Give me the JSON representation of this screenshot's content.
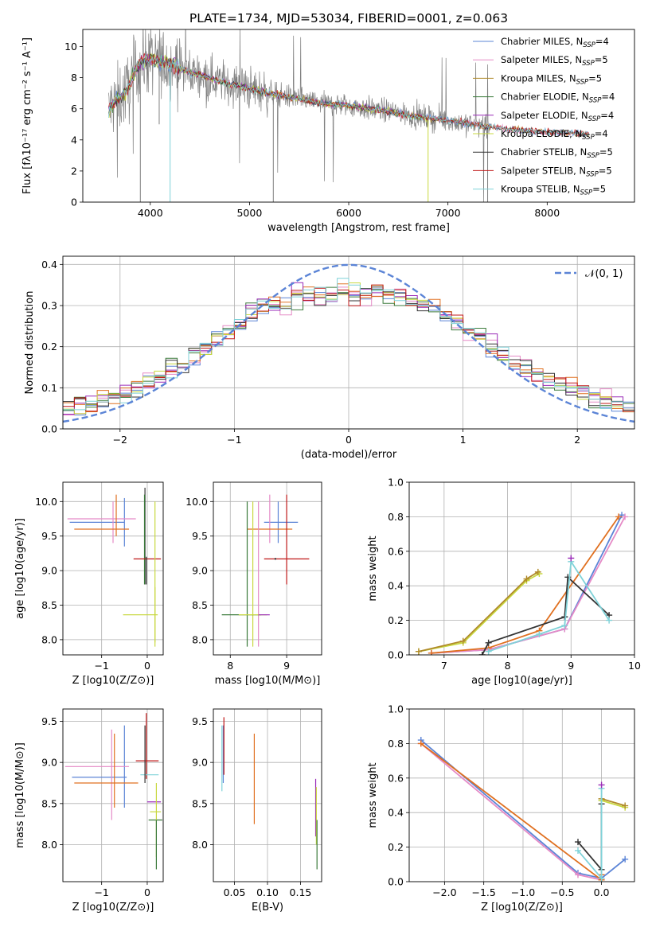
{
  "figure_title": "PLATE=1734, MJD=53034, FIBERID=0001, z=0.063",
  "colors": {
    "Chabrier MILES": "#5b84d6",
    "Salpeter MILES": "#e58ac6",
    "Kroupa MILES": "#b08a2a",
    "Chabrier ELODIE": "#3a7a3a",
    "Salpeter ELODIE": "#9a2ab8",
    "Kroupa ELODIE": "#c8d840",
    "Chabrier STELIB": "#333333",
    "Salpeter STELIB": "#c01818",
    "Kroupa STELIB": "#7fd2d8",
    "orange": "#e07020",
    "data_gray": "#7f7f7f",
    "gaussian": "#5b84d6",
    "grid": "#b0b0b0"
  },
  "chart_data": [
    {
      "id": "spectrum",
      "type": "line",
      "title": "PLATE=1734, MJD=53034, FIBERID=0001, z=0.063",
      "xlabel": "wavelength [Angstrom, rest frame]",
      "ylabel": "Flux [fλ10⁻¹⁷ erg cm⁻² s⁻¹ A⁻¹]",
      "xlim": [
        3320,
        8880
      ],
      "ylim": [
        0,
        11.1
      ],
      "xticks": [
        4000,
        5000,
        6000,
        7000,
        8000
      ],
      "yticks": [
        0,
        2,
        4,
        6,
        8,
        10
      ],
      "grid": false,
      "legend_position": "right",
      "legend": [
        {
          "name": "Chabrier MILES, N_SSP=4",
          "label_main": "Chabrier MILES, N",
          "label_sub": "SSP",
          "label_end": "=4",
          "color_key": "Chabrier MILES"
        },
        {
          "name": "Salpeter MILES, N_SSP=5",
          "label_main": "Salpeter MILES, N",
          "label_sub": "SSP",
          "label_end": "=5",
          "color_key": "Salpeter MILES"
        },
        {
          "name": "Kroupa MILES, N_SSP=5",
          "label_main": "Kroupa MILES, N",
          "label_sub": "SSP",
          "label_end": "=5",
          "color_key": "Kroupa MILES"
        },
        {
          "name": "Chabrier ELODIE, N_SSP=4",
          "label_main": "Chabrier ELODIE, N",
          "label_sub": "SSP",
          "label_end": "=4",
          "color_key": "Chabrier ELODIE"
        },
        {
          "name": "Salpeter ELODIE, N_SSP=4",
          "label_main": "Salpeter ELODIE, N",
          "label_sub": "SSP",
          "label_end": "=4",
          "color_key": "Salpeter ELODIE"
        },
        {
          "name": "Kroupa ELODIE, N_SSP=4",
          "label_main": "Kroupa ELODIE, N",
          "label_sub": "SSP",
          "label_end": "=4",
          "color_key": "Kroupa ELODIE"
        },
        {
          "name": "Chabrier STELIB, N_SSP=5",
          "label_main": "Chabrier STELIB, N",
          "label_sub": "SSP",
          "label_end": "=5",
          "color_key": "Chabrier STELIB"
        },
        {
          "name": "Salpeter STELIB, N_SSP=5",
          "label_main": "Salpeter STELIB, N",
          "label_sub": "SSP",
          "label_end": "=5",
          "color_key": "Salpeter STELIB"
        },
        {
          "name": "Kroupa STELIB, N_SSP=5",
          "label_main": "Kroupa STELIB, N",
          "label_sub": "SSP",
          "label_end": "=5",
          "color_key": "Kroupa STELIB"
        }
      ],
      "continuum": {
        "x": [
          3580,
          3650,
          3700,
          3750,
          3800,
          3850,
          3900,
          3950,
          4000,
          4100,
          4200,
          4300,
          4400,
          4500,
          4600,
          4700,
          4800,
          4900,
          5000,
          5200,
          5400,
          5600,
          5800,
          6000,
          6200,
          6400,
          6600,
          6800,
          7000,
          7200,
          7400,
          7600,
          7800,
          8000,
          8200,
          8400
        ],
        "y": [
          5.9,
          6.5,
          6.7,
          7.1,
          7.6,
          8.5,
          9.0,
          9.1,
          9.2,
          9.0,
          8.9,
          8.6,
          8.3,
          8.2,
          7.95,
          7.8,
          7.6,
          7.5,
          7.3,
          7.0,
          6.75,
          6.5,
          6.3,
          6.2,
          6.0,
          5.85,
          5.6,
          5.4,
          5.25,
          5.05,
          4.85,
          4.7,
          4.6,
          4.5,
          4.45,
          4.4
        ]
      },
      "model_x_range": [
        3580,
        8420
      ],
      "data_x_range": [
        3580,
        7440
      ]
    },
    {
      "id": "residuals",
      "type": "step",
      "xlabel": "(data-model)/error",
      "ylabel": "Normed distribution",
      "xlim": [
        -2.5,
        2.5
      ],
      "ylim": [
        0,
        0.42
      ],
      "xticks": [
        -2,
        -1,
        0,
        1,
        2
      ],
      "yticks": [
        0.0,
        0.1,
        0.2,
        0.3,
        0.4
      ],
      "grid": true,
      "legend_position": "top-right",
      "gaussian_label": "𝒩(0, 1)",
      "bin_edges": [
        -2.5,
        -2.4,
        -2.3,
        -2.2,
        -2.1,
        -2.0,
        -1.9,
        -1.8,
        -1.7,
        -1.6,
        -1.5,
        -1.4,
        -1.3,
        -1.2,
        -1.1,
        -1.0,
        -0.9,
        -0.8,
        -0.7,
        -0.6,
        -0.5,
        -0.4,
        -0.3,
        -0.2,
        -0.1,
        0.0,
        0.1,
        0.2,
        0.3,
        0.4,
        0.5,
        0.6,
        0.7,
        0.8,
        0.9,
        1.0,
        1.1,
        1.2,
        1.3,
        1.4,
        1.5,
        1.6,
        1.7,
        1.8,
        1.9,
        2.0,
        2.1,
        2.2,
        2.3,
        2.4,
        2.5
      ],
      "base_hist": [
        0.045,
        0.055,
        0.06,
        0.07,
        0.08,
        0.09,
        0.1,
        0.115,
        0.13,
        0.14,
        0.155,
        0.175,
        0.2,
        0.22,
        0.235,
        0.255,
        0.28,
        0.3,
        0.3,
        0.31,
        0.32,
        0.33,
        0.32,
        0.33,
        0.34,
        0.33,
        0.33,
        0.34,
        0.33,
        0.32,
        0.31,
        0.3,
        0.3,
        0.28,
        0.26,
        0.24,
        0.22,
        0.2,
        0.18,
        0.165,
        0.15,
        0.135,
        0.12,
        0.11,
        0.1,
        0.09,
        0.08,
        0.07,
        0.06,
        0.05
      ]
    },
    {
      "id": "age-Z",
      "type": "errorbar",
      "xlabel": "Z [log10(Z/Z⊙)]",
      "ylabel": "age  [log10(age/yr)]",
      "xlim": [
        -1.85,
        0.35
      ],
      "ylim": [
        7.78,
        10.28
      ],
      "xticks": [
        -1,
        0
      ],
      "yticks": [
        8.0,
        8.5,
        9.0,
        9.5,
        10.0
      ],
      "grid": true,
      "points": [
        {
          "x": -1.1,
          "y": 9.7,
          "xerr": 0.6,
          "yerr": 0.0,
          "c": "Chabrier MILES"
        },
        {
          "x": -0.5,
          "y": 9.7,
          "xerr": 0.0,
          "yerr": 0.35,
          "c": "Chabrier MILES"
        },
        {
          "x": -1.0,
          "y": 9.75,
          "xerr": 0.75,
          "yerr": 0.0,
          "c": "Salpeter MILES"
        },
        {
          "x": -0.75,
          "y": 9.7,
          "xerr": 0.0,
          "yerr": 0.3,
          "c": "Salpeter MILES"
        },
        {
          "x": -1.0,
          "y": 9.6,
          "xerr": 0.6,
          "yerr": 0.0,
          "c": "orange"
        },
        {
          "x": -0.68,
          "y": 9.8,
          "xerr": 0.0,
          "yerr": 0.3,
          "c": "orange"
        },
        {
          "x": -0.05,
          "y": 9.5,
          "xerr": 0.0,
          "yerr": 0.7,
          "c": "Chabrier STELIB"
        },
        {
          "x": -0.06,
          "y": 9.45,
          "xerr": 0.0,
          "yerr": 0.65,
          "c": "Chabrier ELODIE"
        },
        {
          "x": 0.0,
          "y": 9.17,
          "xerr": 0.3,
          "yerr": 0.0,
          "c": "Salpeter STELIB"
        },
        {
          "x": -0.02,
          "y": 9.0,
          "xerr": 0.0,
          "yerr": 0.2,
          "c": "Chabrier STELIB"
        },
        {
          "x": 0.17,
          "y": 8.95,
          "xerr": 0.0,
          "yerr": 1.05,
          "c": "Kroupa ELODIE"
        },
        {
          "x": 0.17,
          "y": 8.36,
          "xerr": 0.0,
          "yerr": 0.4,
          "c": "Kroupa ELODIE"
        },
        {
          "x": -0.15,
          "y": 8.36,
          "xerr": 0.38,
          "yerr": 0.0,
          "c": "Kroupa ELODIE"
        }
      ]
    },
    {
      "id": "age-mass",
      "type": "errorbar",
      "xlabel": "mass [log10(M/M⊙)]",
      "ylabel": "",
      "xlim": [
        7.7,
        9.62
      ],
      "ylim": [
        7.78,
        10.28
      ],
      "xticks": [
        8,
        9
      ],
      "yticks": [
        8.0,
        8.5,
        9.0,
        9.5,
        10.0
      ],
      "grid": true,
      "points": [
        {
          "x": 8.9,
          "y": 9.7,
          "xerr": 0.3,
          "yerr": 0.0,
          "c": "Chabrier MILES"
        },
        {
          "x": 8.85,
          "y": 9.7,
          "xerr": 0.0,
          "yerr": 0.3,
          "c": "Chabrier MILES"
        },
        {
          "x": 8.7,
          "y": 9.75,
          "xerr": 0.0,
          "yerr": 0.35,
          "c": "Salpeter MILES"
        },
        {
          "x": 8.7,
          "y": 9.6,
          "xerr": 0.4,
          "yerr": 0.0,
          "c": "orange"
        },
        {
          "x": 9.0,
          "y": 9.45,
          "xerr": 0.0,
          "yerr": 0.65,
          "c": "Salpeter STELIB"
        },
        {
          "x": 9.0,
          "y": 9.17,
          "xerr": 0.4,
          "yerr": 0.0,
          "c": "Salpeter STELIB"
        },
        {
          "x": 8.8,
          "y": 9.17,
          "xerr": 0.0,
          "yerr": 0.0,
          "c": "Chabrier STELIB"
        },
        {
          "x": 8.3,
          "y": 8.95,
          "xerr": 0.0,
          "yerr": 1.05,
          "c": "Chabrier ELODIE"
        },
        {
          "x": 8.4,
          "y": 8.95,
          "xerr": 0.0,
          "yerr": 1.05,
          "c": "Kroupa ELODIE"
        },
        {
          "x": 8.5,
          "y": 8.95,
          "xerr": 0.0,
          "yerr": 1.05,
          "c": "Salpeter MILES"
        },
        {
          "x": 8.2,
          "y": 8.36,
          "xerr": 0.35,
          "yerr": 0.0,
          "c": "Chabrier ELODIE"
        },
        {
          "x": 8.4,
          "y": 8.36,
          "xerr": 0.25,
          "yerr": 0.0,
          "c": "Kroupa ELODIE"
        },
        {
          "x": 8.6,
          "y": 8.36,
          "xerr": 0.1,
          "yerr": 0.0,
          "c": "Salpeter ELODIE"
        }
      ]
    },
    {
      "id": "weight-age",
      "type": "line",
      "xlabel": "age  [log10(age/yr)]",
      "ylabel": "mass weight",
      "xlim": [
        6.45,
        10.0
      ],
      "ylim": [
        0.0,
        1.0
      ],
      "xticks": [
        7,
        8,
        9,
        10
      ],
      "yticks": [
        0.0,
        0.2,
        0.4,
        0.6,
        0.8,
        1.0
      ],
      "grid": true,
      "series": [
        {
          "c": "Kroupa ELODIE",
          "x": [
            6.6,
            7.3,
            8.3,
            8.5
          ],
          "y": [
            0.02,
            0.07,
            0.43,
            0.47
          ]
        },
        {
          "c": "Kroupa MILES",
          "x": [
            6.6,
            7.3,
            8.3,
            8.48
          ],
          "y": [
            0.02,
            0.08,
            0.44,
            0.48
          ]
        },
        {
          "c": "Chabrier MILES",
          "x": [
            6.8,
            7.7,
            8.9,
            9.8
          ],
          "y": [
            0.01,
            0.03,
            0.15,
            0.81
          ]
        },
        {
          "c": "Salpeter MILES",
          "x": [
            6.8,
            7.7,
            8.9,
            9.85
          ],
          "y": [
            0.01,
            0.03,
            0.15,
            0.8
          ]
        },
        {
          "c": "orange",
          "x": [
            6.8,
            7.7,
            8.5,
            9.75
          ],
          "y": [
            0.01,
            0.04,
            0.14,
            0.8
          ]
        },
        {
          "c": "Chabrier STELIB",
          "x": [
            7.6,
            7.7,
            8.9,
            8.95,
            9.6
          ],
          "y": [
            0.0,
            0.07,
            0.22,
            0.45,
            0.23
          ]
        },
        {
          "c": "Kroupa STELIB",
          "x": [
            7.7,
            8.5,
            8.9,
            9.0,
            9.6
          ],
          "y": [
            0.02,
            0.12,
            0.17,
            0.54,
            0.2
          ]
        },
        {
          "c": "Salpeter ELODIE",
          "x": [
            9.0
          ],
          "y": [
            0.56
          ]
        }
      ]
    },
    {
      "id": "mass-Z",
      "type": "errorbar",
      "xlabel": "Z [log10(Z/Z⊙)]",
      "ylabel": "mass [log10(M/M⊙)]",
      "xlim": [
        -1.85,
        0.35
      ],
      "ylim": [
        7.55,
        9.65
      ],
      "xticks": [
        -1,
        0
      ],
      "yticks": [
        8.0,
        8.5,
        9.0,
        9.5
      ],
      "grid": true,
      "points": [
        {
          "x": -1.05,
          "y": 8.82,
          "xerr": 0.6,
          "yerr": 0.0,
          "c": "Chabrier MILES"
        },
        {
          "x": -0.5,
          "y": 8.95,
          "xerr": 0.0,
          "yerr": 0.5,
          "c": "Chabrier MILES"
        },
        {
          "x": -1.1,
          "y": 8.95,
          "xerr": 0.7,
          "yerr": 0.0,
          "c": "Salpeter MILES"
        },
        {
          "x": -0.78,
          "y": 8.85,
          "xerr": 0.0,
          "yerr": 0.55,
          "c": "Salpeter MILES"
        },
        {
          "x": -0.9,
          "y": 8.75,
          "xerr": 0.7,
          "yerr": 0.0,
          "c": "orange"
        },
        {
          "x": -0.72,
          "y": 8.9,
          "xerr": 0.0,
          "yerr": 0.45,
          "c": "orange"
        },
        {
          "x": -0.02,
          "y": 9.2,
          "xerr": 0.0,
          "yerr": 0.4,
          "c": "Salpeter STELIB"
        },
        {
          "x": 0.0,
          "y": 9.02,
          "xerr": 0.25,
          "yerr": 0.0,
          "c": "Salpeter STELIB"
        },
        {
          "x": 0.05,
          "y": 8.85,
          "xerr": 0.2,
          "yerr": 0.0,
          "c": "Kroupa STELIB"
        },
        {
          "x": -0.05,
          "y": 9.1,
          "xerr": 0.0,
          "yerr": 0.35,
          "c": "Chabrier STELIB"
        },
        {
          "x": 0.15,
          "y": 8.52,
          "xerr": 0.15,
          "yerr": 0.0,
          "c": "Salpeter ELODIE"
        },
        {
          "x": 0.18,
          "y": 8.4,
          "xerr": 0.12,
          "yerr": 0.0,
          "c": "Kroupa ELODIE"
        },
        {
          "x": 0.18,
          "y": 8.3,
          "xerr": 0.15,
          "yerr": 0.0,
          "c": "Chabrier ELODIE"
        },
        {
          "x": 0.2,
          "y": 8.3,
          "xerr": 0.0,
          "yerr": 0.45,
          "c": "Kroupa ELODIE"
        },
        {
          "x": 0.2,
          "y": 8.0,
          "xerr": 0.0,
          "yerr": 0.3,
          "c": "Chabrier ELODIE"
        }
      ]
    },
    {
      "id": "mass-EBV",
      "type": "errorbar",
      "xlabel": "E(B-V)",
      "ylabel": "",
      "xlim": [
        0.018,
        0.182
      ],
      "ylim": [
        7.55,
        9.65
      ],
      "xticks": [
        0.05,
        0.1,
        0.15
      ],
      "yticks": [
        8.0,
        8.5,
        9.0,
        9.5
      ],
      "grid": true,
      "points": [
        {
          "x": 0.033,
          "y": 9.1,
          "xerr": 0.0,
          "yerr": 0.35,
          "c": "Chabrier MILES"
        },
        {
          "x": 0.031,
          "y": 9.05,
          "xerr": 0.0,
          "yerr": 0.4,
          "c": "Kroupa STELIB"
        },
        {
          "x": 0.034,
          "y": 9.2,
          "xerr": 0.0,
          "yerr": 0.35,
          "c": "Salpeter STELIB"
        },
        {
          "x": 0.08,
          "y": 8.8,
          "xerr": 0.0,
          "yerr": 0.55,
          "c": "orange"
        },
        {
          "x": 0.173,
          "y": 8.45,
          "xerr": 0.0,
          "yerr": 0.35,
          "c": "Salpeter ELODIE"
        },
        {
          "x": 0.174,
          "y": 8.35,
          "xerr": 0.0,
          "yerr": 0.35,
          "c": "Kroupa ELODIE"
        },
        {
          "x": 0.175,
          "y": 8.0,
          "xerr": 0.0,
          "yerr": 0.3,
          "c": "Chabrier ELODIE"
        }
      ]
    },
    {
      "id": "weight-Z",
      "type": "line",
      "xlabel": "Z [log10(Z/Z⊙)]",
      "ylabel": "mass weight",
      "xlim": [
        -2.45,
        0.42
      ],
      "ylim": [
        0.0,
        1.0
      ],
      "xticks": [
        -2.0,
        -1.5,
        -1.0,
        -0.5,
        0.0
      ],
      "yticks": [
        0.0,
        0.2,
        0.4,
        0.6,
        0.8,
        1.0
      ],
      "grid": true,
      "series": [
        {
          "c": "Chabrier MILES",
          "x": [
            -2.3,
            -0.3,
            0.0,
            0.3
          ],
          "y": [
            0.82,
            0.05,
            0.02,
            0.13
          ]
        },
        {
          "c": "Salpeter MILES",
          "x": [
            -2.3,
            -0.3,
            0.0
          ],
          "y": [
            0.8,
            0.04,
            0.01
          ]
        },
        {
          "c": "orange",
          "x": [
            -2.3,
            0.0,
            0.0
          ],
          "y": [
            0.8,
            0.01,
            0.04
          ]
        },
        {
          "c": "Kroupa ELODIE",
          "x": [
            0.0,
            0.3
          ],
          "y": [
            0.47,
            0.43
          ]
        },
        {
          "c": "Kroupa MILES",
          "x": [
            0.0,
            0.3
          ],
          "y": [
            0.48,
            0.44
          ]
        },
        {
          "c": "Chabrier STELIB",
          "x": [
            -0.3,
            0.0,
            0.0
          ],
          "y": [
            0.23,
            0.07,
            0.45
          ]
        },
        {
          "c": "Kroupa STELIB",
          "x": [
            -0.3,
            0.0,
            0.0
          ],
          "y": [
            0.18,
            0.02,
            0.54
          ]
        },
        {
          "c": "Salpeter ELODIE",
          "x": [
            0.0
          ],
          "y": [
            0.56
          ]
        }
      ]
    }
  ]
}
